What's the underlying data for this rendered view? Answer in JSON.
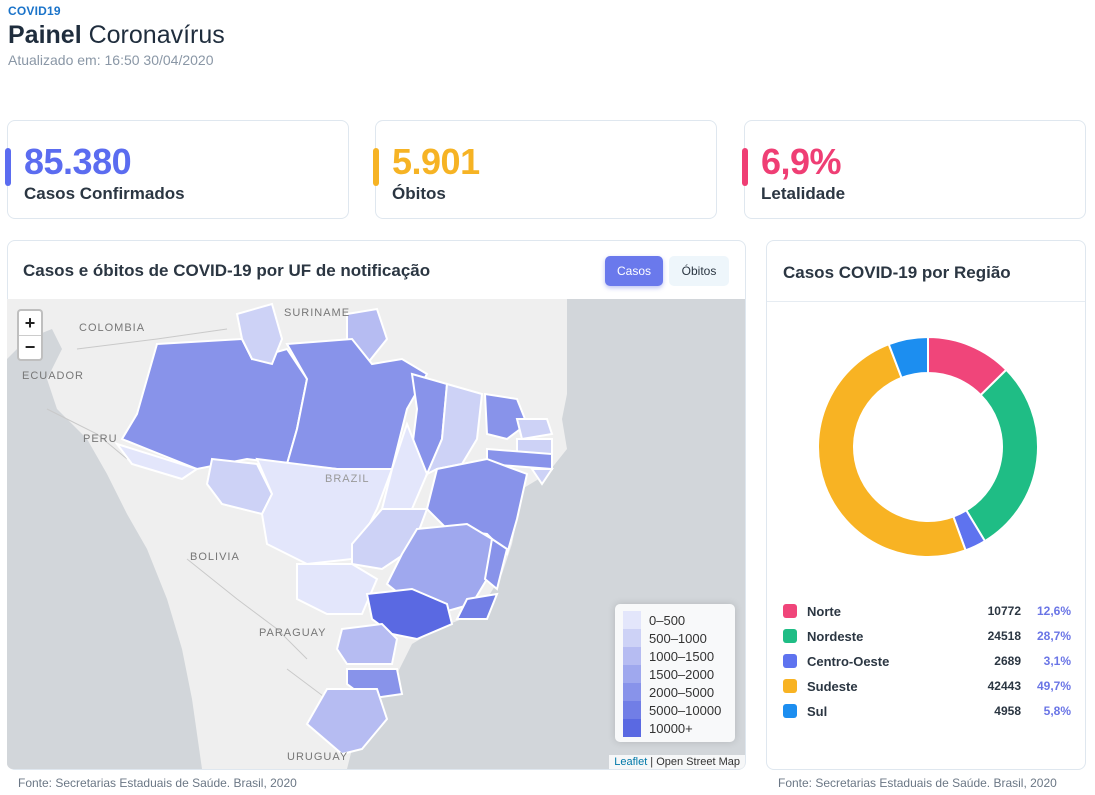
{
  "header": {
    "tag": "COVID19",
    "title_bold": "Painel",
    "title_rest": " Coronavírus",
    "updated_label": "Atualizado em:",
    "updated_value": "16:50 30/04/2020"
  },
  "stats": [
    {
      "value": "85.380",
      "label": "Casos Confirmados",
      "color": "#5b6cf0"
    },
    {
      "value": "5.901",
      "label": "Óbitos",
      "color": "#f6b324"
    },
    {
      "value": "6,9%",
      "label": "Letalidade",
      "color": "#ef3e74"
    }
  ],
  "map_panel": {
    "title": "Casos e óbitos de COVID-19 por UF de notificação",
    "toggle_cases": "Casos",
    "toggle_deaths": "Óbitos",
    "zoom_in": "+",
    "zoom_out": "−",
    "labels": {
      "colombia": "COLOMBIA",
      "suriname": "SURINAME",
      "ecuador": "ECUADOR",
      "peru": "PERU",
      "brazil": "BRAZIL",
      "bolivia": "BOLIVIA",
      "paraguay": "PARAGUAY",
      "uruguay": "URUGUAY"
    },
    "legend": [
      {
        "label": "0–500",
        "color": "#e3e6fb"
      },
      {
        "label": "500–1000",
        "color": "#cdd2f6"
      },
      {
        "label": "1000–1500",
        "color": "#b6bcf2"
      },
      {
        "label": "1500–2000",
        "color": "#9fa8ee"
      },
      {
        "label": "2000–5000",
        "color": "#8893ea"
      },
      {
        "label": "5000–10000",
        "color": "#717ee6"
      },
      {
        "label": "10000+",
        "color": "#5a69e2"
      }
    ],
    "attribution_link": "Leaflet",
    "attribution_text": " | Open Street Map"
  },
  "region_panel": {
    "title": "Casos COVID-19 por Região",
    "regions": [
      {
        "name": "Norte",
        "cases": "10772",
        "pct": "12,6%",
        "share": 12.6,
        "color": "#f0457a"
      },
      {
        "name": "Nordeste",
        "cases": "24518",
        "pct": "28,7%",
        "share": 28.7,
        "color": "#1fbd85"
      },
      {
        "name": "Centro-Oeste",
        "cases": "2689",
        "pct": "3,1%",
        "share": 3.1,
        "color": "#5e73ef"
      },
      {
        "name": "Sudeste",
        "cases": "42443",
        "pct": "49,7%",
        "share": 49.7,
        "color": "#f8b323"
      },
      {
        "name": "Sul",
        "cases": "4958",
        "pct": "5,8%",
        "share": 5.8,
        "color": "#1c8ef0"
      }
    ]
  },
  "footer": {
    "source_left": "Fonte: Secretarias Estaduais de Saúde. Brasil, 2020",
    "source_right": "Fonte: Secretarias Estaduais de Saúde. Brasil, 2020"
  }
}
